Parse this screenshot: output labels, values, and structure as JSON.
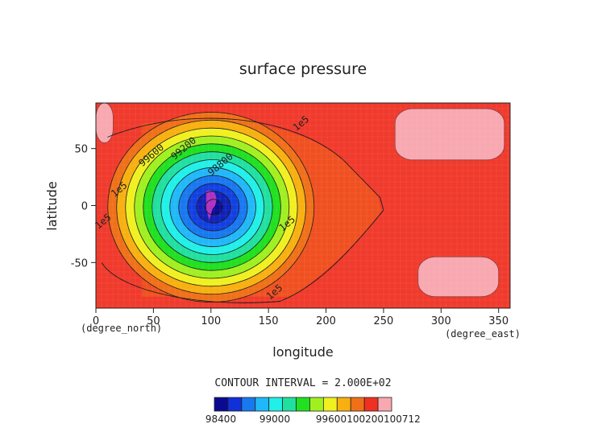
{
  "chart_data": {
    "type": "heatmap",
    "title": "surface pressure",
    "xlabel": "longitude",
    "ylabel": "latitude",
    "x_units": "(degree_east)",
    "y_units": "(degree_north)",
    "xlim": [
      0,
      360
    ],
    "ylim": [
      -90,
      90
    ],
    "x_ticks": [
      0,
      50,
      100,
      150,
      200,
      250,
      300,
      350
    ],
    "y_ticks": [
      50,
      0,
      -50
    ],
    "contour_interval_text": "CONTOUR INTERVAL = 2.000E+02",
    "contour_interval": 200,
    "contour_labels": [
      {
        "text": "1e5",
        "lon": 180,
        "lat": 70
      },
      {
        "text": "99600",
        "lon": 50,
        "lat": 42
      },
      {
        "text": "99200",
        "lon": 78,
        "lat": 48
      },
      {
        "text": "98800",
        "lon": 110,
        "lat": 34
      },
      {
        "text": "1e5",
        "lon": 22,
        "lat": 12
      },
      {
        "text": "1e5",
        "lon": 8,
        "lat": -16
      },
      {
        "text": "1e5",
        "lon": 168,
        "lat": -18
      },
      {
        "text": "1e5",
        "lon": 157,
        "lat": -78
      }
    ],
    "field": {
      "low_center": {
        "lon": 100,
        "lat": 0,
        "value": 98300
      },
      "high_regions": [
        {
          "lon_range": [
            260,
            355
          ],
          "lat_range": [
            40,
            85
          ],
          "value": 100712
        },
        {
          "lon_range": [
            280,
            350
          ],
          "lat_range": [
            -80,
            -45
          ],
          "value": 100712
        },
        {
          "lon_range": [
            0,
            15
          ],
          "lat_range": [
            55,
            90
          ],
          "value": 100712
        }
      ],
      "background_value": 100300
    },
    "colorbar": {
      "tick_labels": [
        "98400",
        "99000",
        "99600",
        "100200100712"
      ],
      "colors": [
        "#0a0a90",
        "#1030d8",
        "#1878f0",
        "#20b8f8",
        "#20f0e8",
        "#20e0a0",
        "#20e020",
        "#a0f020",
        "#f0f020",
        "#f8b010",
        "#f07018",
        "#f03020",
        "#f8a8b0"
      ]
    },
    "grid": false
  }
}
